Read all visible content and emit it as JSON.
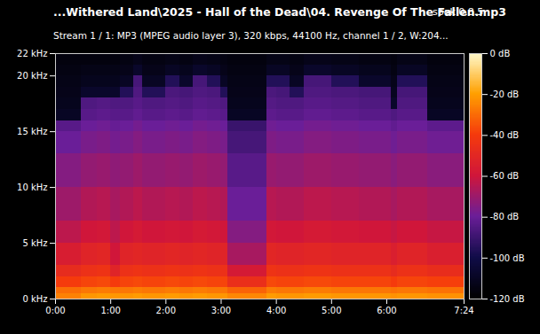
{
  "chart_data": {
    "type": "heatmap",
    "title": "...Withered Land\\2025 - Hall of the Dead\\04. Revenge Of The Fallen.mp3",
    "annotations": [
      "spek 0.8.5"
    ],
    "subtitle": "Stream 1 / 1: MP3 (MPEG audio layer 3), 320 kbps, 44100 Hz, channel 1 / 2, W:204...",
    "xlim": [
      0,
      444
    ],
    "xticks": [
      {
        "value": 0,
        "label": "0:00"
      },
      {
        "value": 60,
        "label": "1:00"
      },
      {
        "value": 120,
        "label": "2:00"
      },
      {
        "value": 180,
        "label": "3:00"
      },
      {
        "value": 240,
        "label": "4:00"
      },
      {
        "value": 300,
        "label": "5:00"
      },
      {
        "value": 360,
        "label": "6:00"
      },
      {
        "value": 444,
        "label": "7:24"
      }
    ],
    "ylim": [
      0,
      22
    ],
    "yticks": [
      {
        "value": 0,
        "label": "0 kHz"
      },
      {
        "value": 5,
        "label": "5 kHz"
      },
      {
        "value": 10,
        "label": "10 kHz"
      },
      {
        "value": 15,
        "label": "15 kHz"
      },
      {
        "value": 20,
        "label": "20 kHz"
      },
      {
        "value": 22,
        "label": "22 kHz"
      }
    ],
    "x_bins": [
      0,
      28,
      45,
      60,
      70,
      85,
      95,
      120,
      135,
      150,
      165,
      180,
      187,
      230,
      240,
      255,
      270,
      300,
      330,
      365,
      372,
      404,
      444
    ],
    "y_bins": [
      0,
      0.5,
      1,
      2,
      3,
      5,
      7,
      10,
      13,
      15,
      16,
      17,
      18,
      19,
      20,
      21,
      22
    ],
    "cells": [
      [
        -26,
        -30,
        -40,
        -48,
        -56,
        -64,
        -70,
        -75,
        -80,
        -84,
        -110,
        -112,
        -113,
        -114,
        -115,
        -116
      ],
      [
        -22,
        -28,
        -38,
        -45,
        -52,
        -60,
        -66,
        -72,
        -77,
        -80,
        -84,
        -86,
        -108,
        -112,
        -114,
        -116
      ],
      [
        -21,
        -27,
        -37,
        -44,
        -51,
        -59,
        -65,
        -71,
        -76,
        -79,
        -83,
        -85,
        -108,
        -112,
        -114,
        -116
      ],
      [
        -22,
        -28,
        -40,
        -52,
        -60,
        -64,
        -68,
        -73,
        -78,
        -81,
        -84,
        -86,
        -108,
        -112,
        -114,
        -116
      ],
      [
        -22,
        -28,
        -38,
        -45,
        -52,
        -60,
        -66,
        -72,
        -77,
        -80,
        -84,
        -86,
        -96,
        -110,
        -113,
        -115
      ],
      [
        -21,
        -27,
        -37,
        -44,
        -51,
        -58,
        -64,
        -70,
        -75,
        -78,
        -82,
        -84,
        -86,
        -88,
        -108,
        -113
      ],
      [
        -22,
        -28,
        -38,
        -45,
        -52,
        -60,
        -66,
        -72,
        -77,
        -80,
        -84,
        -86,
        -96,
        -110,
        -113,
        -115
      ],
      [
        -21,
        -27,
        -37,
        -44,
        -51,
        -59,
        -65,
        -71,
        -76,
        -79,
        -83,
        -85,
        -87,
        -96,
        -110,
        -114
      ],
      [
        -22,
        -28,
        -38,
        -45,
        -52,
        -60,
        -66,
        -72,
        -77,
        -80,
        -84,
        -86,
        -88,
        -108,
        -112,
        -115
      ],
      [
        -21,
        -27,
        -37,
        -44,
        -51,
        -58,
        -64,
        -70,
        -75,
        -78,
        -82,
        -84,
        -86,
        -88,
        -108,
        -113
      ],
      [
        -22,
        -28,
        -38,
        -45,
        -52,
        -59,
        -65,
        -71,
        -76,
        -79,
        -83,
        -85,
        -87,
        -96,
        -110,
        -114
      ],
      [
        -22,
        -28,
        -38,
        -45,
        -52,
        -60,
        -66,
        -72,
        -77,
        -80,
        -84,
        -86,
        -96,
        -110,
        -113,
        -115
      ],
      [
        -25,
        -32,
        -46,
        -58,
        -68,
        -75,
        -80,
        -84,
        -88,
        -91,
        -110,
        -112,
        -113,
        -114,
        -115,
        -116
      ],
      [
        -21,
        -27,
        -37,
        -44,
        -51,
        -59,
        -65,
        -71,
        -76,
        -79,
        -83,
        -85,
        -87,
        -96,
        -110,
        -114
      ],
      [
        -22,
        -28,
        -38,
        -45,
        -52,
        -60,
        -66,
        -72,
        -77,
        -80,
        -84,
        -86,
        -88,
        -96,
        -110,
        -114
      ],
      [
        -22,
        -28,
        -38,
        -45,
        -52,
        -60,
        -66,
        -72,
        -77,
        -80,
        -84,
        -86,
        -96,
        -110,
        -113,
        -115
      ],
      [
        -21,
        -27,
        -37,
        -44,
        -51,
        -58,
        -64,
        -70,
        -75,
        -78,
        -82,
        -84,
        -86,
        -88,
        -108,
        -113
      ],
      [
        -22,
        -28,
        -38,
        -45,
        -52,
        -59,
        -65,
        -71,
        -76,
        -79,
        -83,
        -85,
        -87,
        -96,
        -110,
        -114
      ],
      [
        -22,
        -28,
        -38,
        -45,
        -52,
        -60,
        -66,
        -72,
        -77,
        -80,
        -84,
        -86,
        -88,
        -108,
        -112,
        -115
      ],
      [
        -23,
        -29,
        -40,
        -48,
        -55,
        -62,
        -68,
        -74,
        -79,
        -82,
        -86,
        -108,
        -111,
        -113,
        -115,
        -116
      ],
      [
        -22,
        -28,
        -38,
        -45,
        -52,
        -60,
        -66,
        -72,
        -77,
        -80,
        -84,
        -86,
        -88,
        -96,
        -110,
        -114
      ],
      [
        -23,
        -29,
        -39,
        -47,
        -55,
        -62,
        -68,
        -74,
        -79,
        -83,
        -110,
        -112,
        -113,
        -114,
        -115,
        -116
      ]
    ],
    "colorbar": {
      "range": [
        -120,
        0
      ],
      "ticks": [
        {
          "value": -120,
          "label": "-120 dB"
        },
        {
          "value": -100,
          "label": "-100 dB"
        },
        {
          "value": -80,
          "label": "-80 dB"
        },
        {
          "value": -60,
          "label": "-60 dB"
        },
        {
          "value": -40,
          "label": "-40 dB"
        },
        {
          "value": -20,
          "label": "-20 dB"
        },
        {
          "value": 0,
          "label": "0 dB"
        }
      ]
    }
  }
}
